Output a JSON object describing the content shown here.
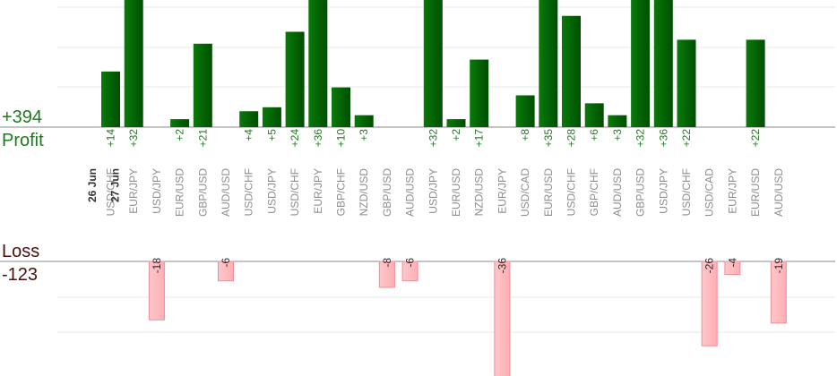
{
  "chart_data": {
    "type": "bar",
    "categories": [
      "USD/CHF",
      "EUR/JPY",
      "USD/JPY",
      "EUR/USD",
      "GBP/USD",
      "AUD/USD",
      "USD/CHF",
      "USD/JPY",
      "USD/CHF",
      "EUR/JPY",
      "GBP/CHF",
      "NZD/USD",
      "GBP/USD",
      "AUD/USD",
      "USD/JPY",
      "EUR/USD",
      "NZD/USD",
      "EUR/JPY",
      "USD/CAD",
      "EUR/USD",
      "USD/CHF",
      "GBP/CHF",
      "AUD/USD",
      "GBP/USD",
      "USD/JPY",
      "USD/CHF",
      "USD/CAD",
      "EUR/JPY",
      "EUR/USD",
      "AUD/USD"
    ],
    "date_groups": [
      {
        "label": "26 Jun",
        "start_index": 0
      },
      {
        "label": "27 Jun",
        "start_index": 1
      }
    ],
    "series": [
      {
        "name": "Profit",
        "values": [
          14,
          32,
          null,
          2,
          21,
          null,
          4,
          5,
          24,
          36,
          10,
          3,
          null,
          null,
          32,
          2,
          17,
          null,
          8,
          35,
          28,
          6,
          3,
          32,
          36,
          22,
          null,
          null,
          22,
          null
        ],
        "labels": [
          "+14",
          "+32",
          "",
          "+2",
          "+21",
          "",
          "+4",
          "+5",
          "+24",
          "+36",
          "+10",
          "+3",
          "",
          "",
          "+32",
          "+2",
          "+17",
          "",
          "+8",
          "+35",
          "+28",
          "+6",
          "+3",
          "+32",
          "+36",
          "+22",
          "",
          "",
          "+22",
          ""
        ],
        "color": "#0b7a0b"
      },
      {
        "name": "Loss",
        "values": [
          null,
          null,
          -18,
          null,
          null,
          -6,
          null,
          null,
          null,
          null,
          null,
          null,
          -8,
          -6,
          null,
          null,
          null,
          -36,
          null,
          null,
          null,
          null,
          null,
          null,
          null,
          null,
          -26,
          -4,
          null,
          -19
        ],
        "labels": [
          "",
          "",
          "-18",
          "",
          "",
          "-6",
          "",
          "",
          "",
          "",
          "",
          "",
          "-8",
          "-6",
          "",
          "",
          "",
          "-36",
          "",
          "",
          "",
          "",
          "",
          "",
          "",
          "",
          "-26",
          "-4",
          "",
          "-19"
        ],
        "color": "#ffb3b8"
      }
    ],
    "profit_total": "+394",
    "profit_label": "Profit",
    "loss_label": "Loss",
    "loss_total": "-123",
    "profit_ylim": [
      0,
      32
    ],
    "loss_ylim": [
      -32,
      0
    ],
    "grid": true,
    "legend": "left",
    "colors": {
      "profit_text": "#1f7a1f",
      "loss_text": "#4a1010",
      "category_text": "#8d8d8d",
      "date_text": "#333333",
      "grid": "#e9e9e9",
      "axis": "#8a8a8a"
    }
  }
}
